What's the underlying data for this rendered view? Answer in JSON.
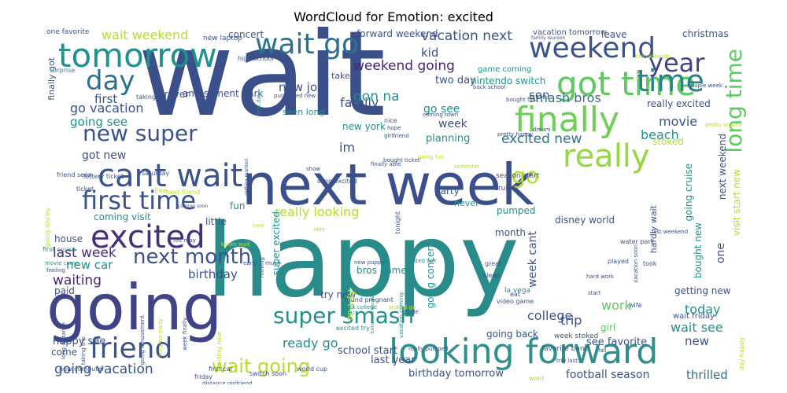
{
  "title": "WordCloud for Emotion: excited",
  "chart_data": {
    "type": "wordcloud",
    "title": "WordCloud for Emotion: excited",
    "colormap": "viridis",
    "background": "#ffffff",
    "words": [
      {
        "text": "wait",
        "color": "#3b4f8a"
      },
      {
        "text": "happy",
        "color": "#2a8c8a"
      },
      {
        "text": "next week",
        "color": "#3b4f8a"
      },
      {
        "text": "going",
        "color": "#404487"
      },
      {
        "text": "looking forward",
        "color": "#2e8f8b"
      },
      {
        "text": "cant wait",
        "color": "#3a538b"
      },
      {
        "text": "excited",
        "color": "#46307e"
      },
      {
        "text": "got time",
        "color": "#5ec962"
      },
      {
        "text": "tomorrow",
        "color": "#21918c"
      },
      {
        "text": "weekend",
        "color": "#3b528b"
      },
      {
        "text": "wait go",
        "color": "#2c728e"
      },
      {
        "text": "finally",
        "color": "#6ece58"
      },
      {
        "text": "time",
        "color": "#27808e"
      },
      {
        "text": "first time",
        "color": "#3b528b"
      },
      {
        "text": "friend",
        "color": "#3b528b"
      },
      {
        "text": "day",
        "color": "#2c728e"
      },
      {
        "text": "really",
        "color": "#95d840"
      },
      {
        "text": "year",
        "color": "#414487"
      },
      {
        "text": "long time",
        "color": "#5ec962"
      },
      {
        "text": "new super",
        "color": "#3b528b"
      },
      {
        "text": "super smash",
        "color": "#21918c"
      },
      {
        "text": "next month",
        "color": "#3b528b"
      },
      {
        "text": "wait going",
        "color": "#b5de2b"
      },
      {
        "text": "go",
        "color": "#b5de2b"
      },
      {
        "text": "weekend going",
        "color": "#482475"
      },
      {
        "text": "going vacation",
        "color": "#3b528b"
      },
      {
        "text": "last week",
        "color": "#472d7b"
      },
      {
        "text": "excited new",
        "color": "#2c728e"
      },
      {
        "text": "wait weekend",
        "color": "#b5de2b"
      },
      {
        "text": "vacation next",
        "color": "#3b528b"
      },
      {
        "text": "go vacation",
        "color": "#3b528b"
      },
      {
        "text": "really looking",
        "color": "#b5de2b"
      },
      {
        "text": "smash bros",
        "color": "#2c728e"
      },
      {
        "text": "gon na",
        "color": "#21918c"
      },
      {
        "text": "going see",
        "color": "#21918c"
      },
      {
        "text": "new job",
        "color": "#3b528b"
      },
      {
        "text": "waiting",
        "color": "#482475"
      },
      {
        "text": "birthday",
        "color": "#3b528b"
      },
      {
        "text": "football season",
        "color": "#3b528b"
      },
      {
        "text": "thrilled",
        "color": "#2c728e"
      },
      {
        "text": "wait see",
        "color": "#21918c"
      },
      {
        "text": "today",
        "color": "#21918c"
      },
      {
        "text": "college",
        "color": "#3b528b"
      },
      {
        "text": "trip",
        "color": "#3b528b"
      },
      {
        "text": "work",
        "color": "#5ec962"
      },
      {
        "text": "ready go",
        "color": "#21918c"
      },
      {
        "text": "movie",
        "color": "#3b528b"
      },
      {
        "text": "beach",
        "color": "#21918c"
      },
      {
        "text": "happy see",
        "color": "#3b528b"
      },
      {
        "text": "family",
        "color": "#3b528b"
      },
      {
        "text": "week",
        "color": "#3b528b"
      },
      {
        "text": "first",
        "color": "#3b528b"
      },
      {
        "text": "son",
        "color": "#3b528b"
      },
      {
        "text": "got new",
        "color": "#3b528b"
      },
      {
        "text": "new car",
        "color": "#21918c"
      },
      {
        "text": "two day",
        "color": "#3b528b"
      },
      {
        "text": "kid",
        "color": "#3b528b"
      },
      {
        "text": "go see",
        "color": "#21918c"
      },
      {
        "text": "new york",
        "color": "#21918c"
      },
      {
        "text": "im",
        "color": "#3b528b"
      },
      {
        "text": "planning",
        "color": "#21918c"
      },
      {
        "text": "see favorite",
        "color": "#3b528b"
      },
      {
        "text": "new",
        "color": "#3b528b"
      },
      {
        "text": "school start",
        "color": "#3b528b"
      },
      {
        "text": "last year",
        "color": "#3b528b"
      },
      {
        "text": "birthday tomorrow",
        "color": "#3b528b"
      },
      {
        "text": "going back",
        "color": "#3b528b"
      },
      {
        "text": "come",
        "color": "#3b528b"
      },
      {
        "text": "house",
        "color": "#3b528b"
      },
      {
        "text": "paid",
        "color": "#3b528b"
      },
      {
        "text": "fun",
        "color": "#21918c"
      },
      {
        "text": "little",
        "color": "#3b528b"
      },
      {
        "text": "coming visit",
        "color": "#21918c"
      },
      {
        "text": "bros game",
        "color": "#21918c"
      },
      {
        "text": "try new",
        "color": "#3b528b"
      },
      {
        "text": "ready",
        "color": "#b5de2b"
      },
      {
        "text": "pumped",
        "color": "#21918c"
      },
      {
        "text": "month",
        "color": "#3b528b"
      },
      {
        "text": "disney world",
        "color": "#3b528b"
      },
      {
        "text": "party",
        "color": "#3b528b"
      },
      {
        "text": "never",
        "color": "#21918c"
      },
      {
        "text": "stoked",
        "color": "#b5de2b"
      },
      {
        "text": "girl",
        "color": "#5ec962"
      },
      {
        "text": "getting new",
        "color": "#3b528b"
      },
      {
        "text": "really excited",
        "color": "#3b528b"
      },
      {
        "text": "amusement park",
        "color": "#3b528b"
      },
      {
        "text": "forever",
        "color": "#3b528b"
      },
      {
        "text": "concert",
        "color": "#3b528b"
      },
      {
        "text": "forward weekend",
        "color": "#3b528b"
      },
      {
        "text": "vacation tomorrow",
        "color": "#3b528b"
      },
      {
        "text": "christmas",
        "color": "#3b528b"
      },
      {
        "text": "leave",
        "color": "#3b528b"
      },
      {
        "text": "nintendo switch",
        "color": "#21918c"
      },
      {
        "text": "game coming",
        "color": "#21918c"
      },
      {
        "text": "take",
        "color": "#3b528b"
      },
      {
        "text": "one favorite",
        "color": "#3b528b"
      },
      {
        "text": "new laptop",
        "color": "#3b528b"
      },
      {
        "text": "high school",
        "color": "#3b528b"
      },
      {
        "text": "finally got",
        "color": "#3b528b"
      },
      {
        "text": "surprise",
        "color": "#21918c"
      },
      {
        "text": "taking",
        "color": "#3b528b"
      },
      {
        "text": "week cant",
        "color": "#3b528b"
      },
      {
        "text": "going concert",
        "color": "#21918c"
      },
      {
        "text": "super excited",
        "color": "#21918c"
      },
      {
        "text": "going cruise",
        "color": "#21918c"
      },
      {
        "text": "next weekend",
        "color": "#3b528b"
      },
      {
        "text": "visit start new",
        "color": "#b5de2b"
      },
      {
        "text": "one",
        "color": "#3b528b"
      },
      {
        "text": "bought new",
        "color": "#21918c"
      },
      {
        "text": "hardly wait",
        "color": "#3b528b"
      },
      {
        "text": "wait friday",
        "color": "#3b528b"
      },
      {
        "text": "la vega",
        "color": "#21918c"
      },
      {
        "text": "video game",
        "color": "#3b528b"
      },
      {
        "text": "favorite band",
        "color": "#3b528b"
      },
      {
        "text": "week stoked",
        "color": "#3b528b"
      },
      {
        "text": "world cup",
        "color": "#3b528b"
      },
      {
        "text": "switch soon",
        "color": "#3b528b"
      },
      {
        "text": "new computer",
        "color": "#3b528b"
      },
      {
        "text": "first car",
        "color": "#3b528b"
      },
      {
        "text": "friday",
        "color": "#3b528b"
      },
      {
        "text": "distance girlfriend",
        "color": "#3b528b"
      },
      {
        "text": "trip last",
        "color": "#3b528b"
      },
      {
        "text": "went",
        "color": "#b5de2b"
      },
      {
        "text": "day happy",
        "color": "#b5de2b"
      },
      {
        "text": "seen long",
        "color": "#21918c"
      },
      {
        "text": "season start",
        "color": "#3b528b"
      },
      {
        "text": "cruise",
        "color": "#3b528b"
      },
      {
        "text": "soon excited",
        "color": "#3b528b"
      },
      {
        "text": "lottery ticket",
        "color": "#3b528b"
      },
      {
        "text": "saturday",
        "color": "#3b528b"
      },
      {
        "text": "friend seen",
        "color": "#3b528b"
      },
      {
        "text": "ticket",
        "color": "#3b528b"
      },
      {
        "text": "free",
        "color": "#b5de2b"
      },
      {
        "text": "best friend",
        "color": "#b5de2b"
      },
      {
        "text": "going disney",
        "color": "#b5de2b"
      },
      {
        "text": "first cruise",
        "color": "#21918c"
      },
      {
        "text": "felt may",
        "color": "#3b528b"
      },
      {
        "text": "boom wait",
        "color": "#b5de2b"
      },
      {
        "text": "early",
        "color": "#3b528b"
      },
      {
        "text": "much",
        "color": "#3b528b"
      },
      {
        "text": "wanted see",
        "color": "#21918c"
      },
      {
        "text": "sleep",
        "color": "#3b528b"
      },
      {
        "text": "great",
        "color": "#3b528b"
      },
      {
        "text": "new puppy",
        "color": "#3b528b"
      },
      {
        "text": "bought ticket",
        "color": "#3b528b"
      },
      {
        "text": "finally able",
        "color": "#3b528b"
      },
      {
        "text": "going fun",
        "color": "#b5de2b"
      },
      {
        "text": "semester",
        "color": "#b5de2b"
      },
      {
        "text": "coming town",
        "color": "#3b528b"
      },
      {
        "text": "nice",
        "color": "#3b528b"
      },
      {
        "text": "hope",
        "color": "#3b528b"
      },
      {
        "text": "girlfriend",
        "color": "#3b528b"
      },
      {
        "text": "pretty happy",
        "color": "#3b528b"
      },
      {
        "text": "dream",
        "color": "#3b528b"
      },
      {
        "text": "pretty stoked",
        "color": "#b5de2b"
      },
      {
        "text": "couple week",
        "color": "#3b528b"
      },
      {
        "text": "bought first",
        "color": "#3b528b"
      },
      {
        "text": "back school",
        "color": "#3b528b"
      },
      {
        "text": "purchased new",
        "color": "#3b528b"
      },
      {
        "text": "family reunion",
        "color": "#3b528b"
      },
      {
        "text": "bro nintendo",
        "color": "#b5de2b"
      },
      {
        "text": "played",
        "color": "#3b528b"
      },
      {
        "text": "hard work",
        "color": "#3b528b"
      },
      {
        "text": "start",
        "color": "#3b528b"
      },
      {
        "text": "eat",
        "color": "#3b528b"
      },
      {
        "text": "made",
        "color": "#3b528b"
      },
      {
        "text": "fall",
        "color": "#3b528b"
      },
      {
        "text": "water park",
        "color": "#3b528b"
      },
      {
        "text": "took",
        "color": "#3b528b"
      },
      {
        "text": "last weekend",
        "color": "#3b528b"
      },
      {
        "text": "wife",
        "color": "#3b528b"
      },
      {
        "text": "excited try",
        "color": "#21918c"
      },
      {
        "text": "tomorrow excited",
        "color": "#21918c"
      },
      {
        "text": "found pregnant",
        "color": "#3b528b"
      },
      {
        "text": "really pumped",
        "color": "#3b528b"
      },
      {
        "text": "back college",
        "color": "#21918c"
      },
      {
        "text": "stoked go",
        "color": "#b5de2b"
      },
      {
        "text": "vacation coming",
        "color": "#21918c"
      },
      {
        "text": "tonight",
        "color": "#3b528b"
      },
      {
        "text": "moving",
        "color": "#3b528b"
      },
      {
        "text": "starting new",
        "color": "#b5de2b"
      },
      {
        "text": "feeling",
        "color": "#3b528b"
      },
      {
        "text": "movie come",
        "color": "#21918c"
      },
      {
        "text": "long distance",
        "color": "#3b528b"
      },
      {
        "text": "taking trip",
        "color": "#3b528b"
      },
      {
        "text": "going amusement",
        "color": "#3b528b"
      },
      {
        "text": "surprise party",
        "color": "#b5de2b"
      },
      {
        "text": "week finally",
        "color": "#3b528b"
      },
      {
        "text": "getting married",
        "color": "#3b528b"
      },
      {
        "text": "first day",
        "color": "#21918c"
      },
      {
        "text": "show",
        "color": "#3b528b"
      },
      {
        "text": "love",
        "color": "#b5de2b"
      },
      {
        "text": "able",
        "color": "#b5de2b"
      },
      {
        "text": "coming soon",
        "color": "#3b528b"
      },
      {
        "text": "vacation soon",
        "color": "#3b528b"
      }
    ]
  }
}
